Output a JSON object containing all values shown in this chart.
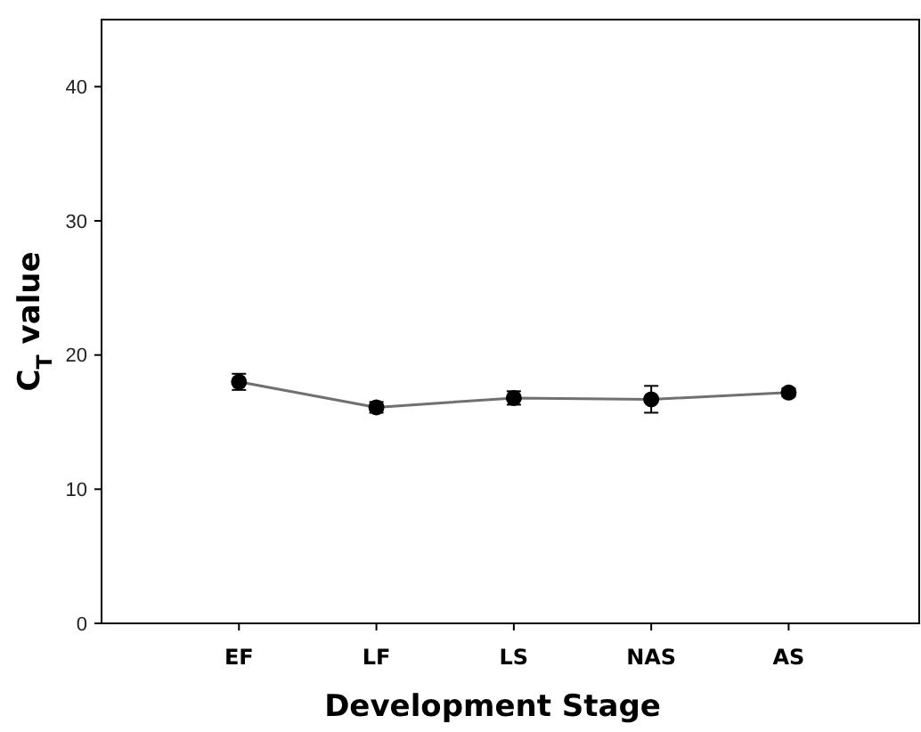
{
  "chart_data": {
    "type": "line",
    "xlabel": "Development Stage",
    "ylabel": "C$_{T}$ value",
    "categories": [
      "EF",
      "LF",
      "LS",
      "NAS",
      "AS"
    ],
    "series": [
      {
        "color": "#000000",
        "values": [
          18.0,
          16.1,
          16.8,
          16.7,
          17.2
        ],
        "errors": [
          0.6,
          0.4,
          0.5,
          1.0,
          0.3
        ]
      }
    ],
    "ylim": [
      0,
      45
    ],
    "yticks": [
      0,
      10,
      20,
      30,
      40
    ],
    "marker": "circle",
    "line_style": "solid",
    "grid": false
  }
}
